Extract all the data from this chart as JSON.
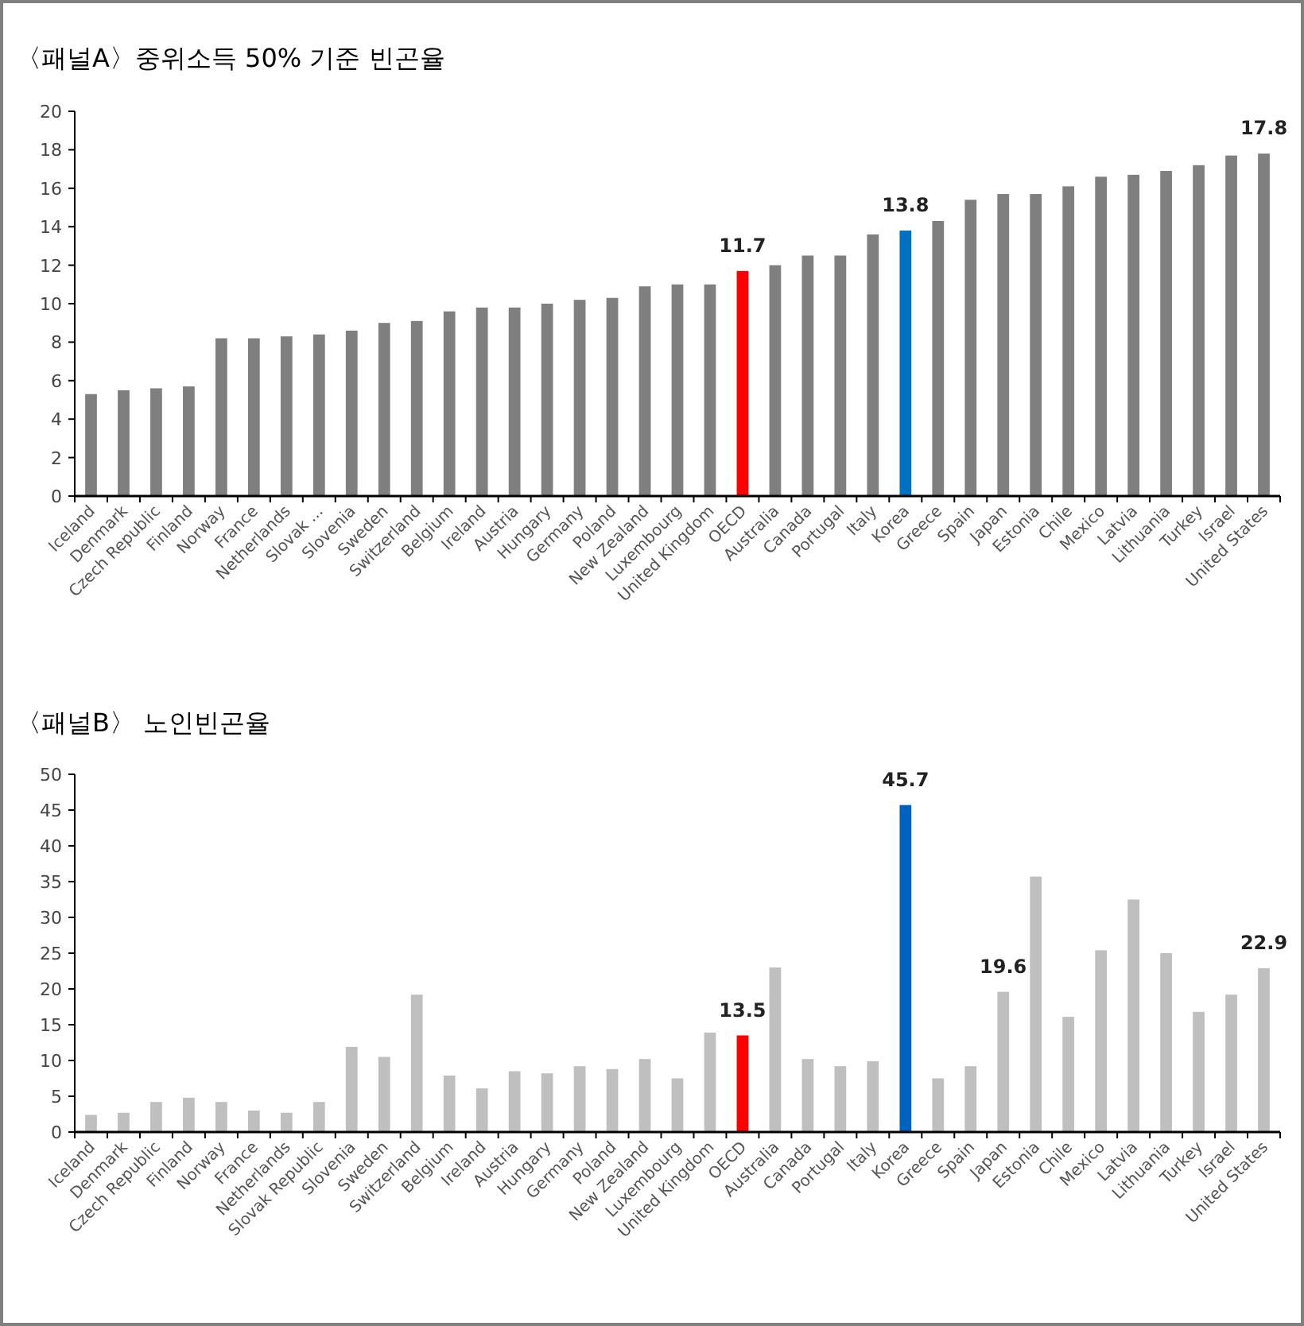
{
  "chart_data": [
    {
      "type": "bar",
      "title": "〈패널A〉중위소득 50% 기준 빈곤율",
      "categories": [
        "Iceland",
        "Denmark",
        "Czech Republic",
        "Finland",
        "Norway",
        "France",
        "Netherlands",
        "Slovak ...",
        "Slovenia",
        "Sweden",
        "Switzerland",
        "Belgium",
        "Ireland",
        "Austria",
        "Hungary",
        "Germany",
        "Poland",
        "New Zealand",
        "Luxembourg",
        "United Kingdom",
        "OECD",
        "Australia",
        "Canada",
        "Portugal",
        "Italy",
        "Korea",
        "Greece",
        "Spain",
        "Japan",
        "Estonia",
        "Chile",
        "Mexico",
        "Latvia",
        "Lithuania",
        "Turkey",
        "Israel",
        "United States"
      ],
      "values": [
        5.3,
        5.5,
        5.6,
        5.7,
        8.2,
        8.2,
        8.3,
        8.4,
        8.6,
        9.0,
        9.1,
        9.6,
        9.8,
        9.8,
        10.0,
        10.2,
        10.3,
        10.9,
        11.0,
        11.0,
        11.7,
        12.0,
        12.5,
        12.5,
        13.6,
        13.8,
        14.3,
        15.4,
        15.7,
        15.7,
        16.1,
        16.6,
        16.7,
        16.9,
        17.2,
        17.7,
        17.8
      ],
      "colors": [
        "#7f7f7f",
        "#7f7f7f",
        "#7f7f7f",
        "#7f7f7f",
        "#7f7f7f",
        "#7f7f7f",
        "#7f7f7f",
        "#7f7f7f",
        "#7f7f7f",
        "#7f7f7f",
        "#7f7f7f",
        "#7f7f7f",
        "#7f7f7f",
        "#7f7f7f",
        "#7f7f7f",
        "#7f7f7f",
        "#7f7f7f",
        "#7f7f7f",
        "#7f7f7f",
        "#7f7f7f",
        "#ff0000",
        "#7f7f7f",
        "#7f7f7f",
        "#7f7f7f",
        "#7f7f7f",
        "#0070c0",
        "#7f7f7f",
        "#7f7f7f",
        "#7f7f7f",
        "#7f7f7f",
        "#7f7f7f",
        "#7f7f7f",
        "#7f7f7f",
        "#7f7f7f",
        "#7f7f7f",
        "#7f7f7f",
        "#7f7f7f"
      ],
      "value_labels": [
        null,
        null,
        null,
        null,
        null,
        null,
        null,
        null,
        null,
        null,
        null,
        null,
        null,
        null,
        null,
        null,
        null,
        null,
        null,
        null,
        "11.7",
        null,
        null,
        null,
        null,
        "13.8",
        null,
        null,
        null,
        null,
        null,
        null,
        null,
        null,
        null,
        null,
        "17.8"
      ],
      "ylim": [
        0,
        20
      ],
      "yticks": [
        0,
        2,
        4,
        6,
        8,
        10,
        12,
        14,
        16,
        18,
        20
      ]
    },
    {
      "type": "bar",
      "title": "〈패널B〉 노인빈곤율",
      "categories": [
        "Iceland",
        "Denmark",
        "Czech Republic",
        "Finland",
        "Norway",
        "France",
        "Netherlands",
        "Slovak Republic",
        "Slovenia",
        "Sweden",
        "Switzerland",
        "Belgium",
        "Ireland",
        "Austria",
        "Hungary",
        "Germany",
        "Poland",
        "New Zealand",
        "Luxembourg",
        "United Kingdom",
        "OECD",
        "Australia",
        "Canada",
        "Portugal",
        "Italy",
        "Korea",
        "Greece",
        "Spain",
        "Japan",
        "Estonia",
        "Chile",
        "Mexico",
        "Latvia",
        "Lithuania",
        "Turkey",
        "Israel",
        "United States"
      ],
      "values": [
        2.4,
        2.7,
        4.2,
        4.8,
        4.2,
        3.0,
        2.7,
        4.2,
        11.9,
        10.5,
        19.2,
        7.9,
        6.1,
        8.5,
        8.2,
        9.2,
        8.8,
        10.2,
        7.5,
        13.9,
        13.5,
        23.0,
        10.2,
        9.2,
        9.9,
        45.7,
        7.5,
        9.2,
        19.6,
        35.7,
        16.1,
        25.4,
        32.5,
        25.0,
        16.8,
        19.2,
        22.9
      ],
      "colors": [
        "#bfbfbf",
        "#bfbfbf",
        "#bfbfbf",
        "#bfbfbf",
        "#bfbfbf",
        "#bfbfbf",
        "#bfbfbf",
        "#bfbfbf",
        "#bfbfbf",
        "#bfbfbf",
        "#bfbfbf",
        "#bfbfbf",
        "#bfbfbf",
        "#bfbfbf",
        "#bfbfbf",
        "#bfbfbf",
        "#bfbfbf",
        "#bfbfbf",
        "#bfbfbf",
        "#bfbfbf",
        "#ff0000",
        "#bfbfbf",
        "#bfbfbf",
        "#bfbfbf",
        "#bfbfbf",
        "#0062c0",
        "#bfbfbf",
        "#bfbfbf",
        "#bfbfbf",
        "#bfbfbf",
        "#bfbfbf",
        "#bfbfbf",
        "#bfbfbf",
        "#bfbfbf",
        "#bfbfbf",
        "#bfbfbf",
        "#bfbfbf"
      ],
      "value_labels": [
        null,
        null,
        null,
        null,
        null,
        null,
        null,
        null,
        null,
        null,
        null,
        null,
        null,
        null,
        null,
        null,
        null,
        null,
        null,
        null,
        "13.5",
        null,
        null,
        null,
        null,
        "45.7",
        null,
        null,
        "19.6",
        null,
        null,
        null,
        null,
        null,
        null,
        null,
        "22.9"
      ],
      "ylim": [
        0,
        50
      ],
      "yticks": [
        0,
        5,
        10,
        15,
        20,
        25,
        30,
        35,
        40,
        45,
        50
      ]
    }
  ]
}
